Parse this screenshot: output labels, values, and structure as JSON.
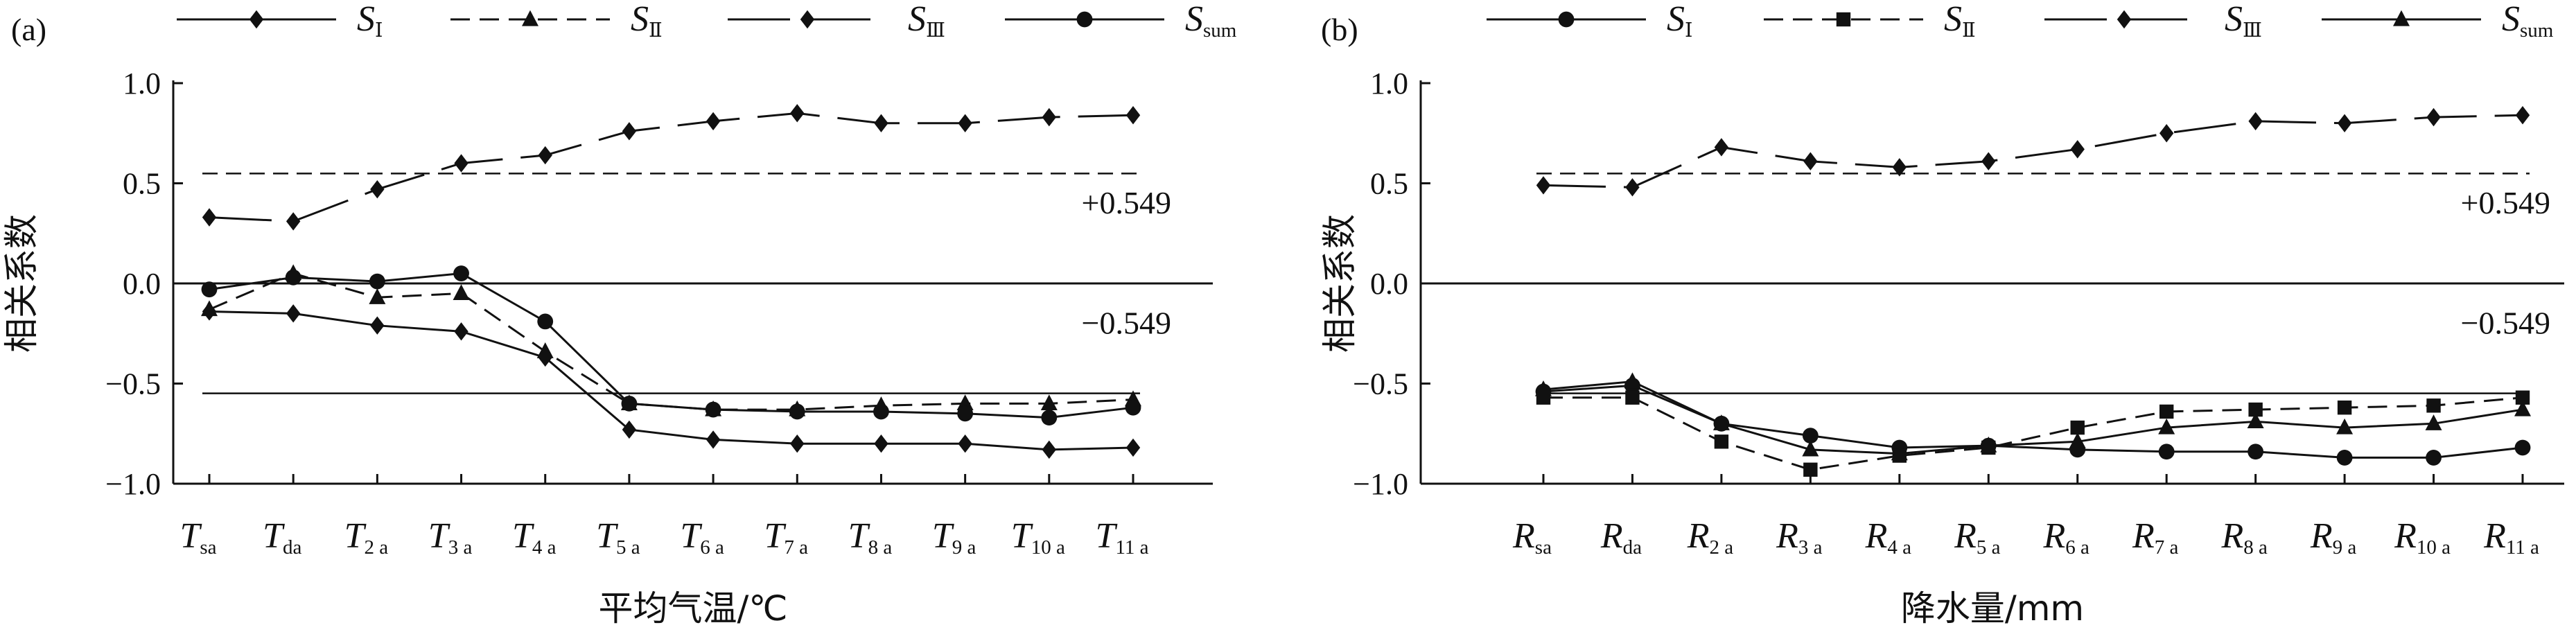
{
  "chart_data": [
    {
      "panel_label": "(a)",
      "type": "line",
      "xlabel": "平均气温/℃",
      "ylabel": "相关系数",
      "ylim": [
        -1.0,
        1.0
      ],
      "yticks": [
        "1.0",
        "0.5",
        "0.0",
        "−0.5",
        "−1.0"
      ],
      "categories": [
        {
          "base": "T",
          "sub": "sa"
        },
        {
          "base": "T",
          "sub": "da"
        },
        {
          "base": "T",
          "sub": "2 a"
        },
        {
          "base": "T",
          "sub": "3 a"
        },
        {
          "base": "T",
          "sub": "4 a"
        },
        {
          "base": "T",
          "sub": "5 a"
        },
        {
          "base": "T",
          "sub": "6 a"
        },
        {
          "base": "T",
          "sub": "7 a"
        },
        {
          "base": "T",
          "sub": "8 a"
        },
        {
          "base": "T",
          "sub": "9 a"
        },
        {
          "base": "T",
          "sub": "10 a"
        },
        {
          "base": "T",
          "sub": "11 a"
        }
      ],
      "thresholds": [
        {
          "value": 0.549,
          "label": "+0.549",
          "style": "dashed"
        },
        {
          "value": -0.549,
          "label": "−0.549",
          "style": "solid"
        }
      ],
      "zero_line": true,
      "legend_position": "top",
      "series": [
        {
          "name_base": "S",
          "name_sub": "Ⅰ",
          "marker": "diamond",
          "line": "solid",
          "values": [
            -0.14,
            -0.15,
            -0.21,
            -0.24,
            -0.37,
            -0.73,
            -0.78,
            -0.8,
            -0.8,
            -0.8,
            -0.83,
            -0.82
          ]
        },
        {
          "name_base": "S",
          "name_sub": "Ⅱ",
          "marker": "triangle",
          "line": "dashed",
          "values": [
            -0.13,
            0.05,
            -0.07,
            -0.05,
            -0.34,
            -0.6,
            -0.63,
            -0.63,
            -0.61,
            -0.6,
            -0.6,
            -0.58
          ]
        },
        {
          "name_base": "S",
          "name_sub": "Ⅲ",
          "marker": "diamond",
          "line": "longdash",
          "values": [
            0.33,
            0.31,
            0.47,
            0.6,
            0.64,
            0.76,
            0.81,
            0.85,
            0.8,
            0.8,
            0.83,
            0.84
          ]
        },
        {
          "name_base": "S",
          "name_sub": "sum",
          "marker": "circle",
          "line": "solid",
          "values": [
            -0.03,
            0.03,
            0.01,
            0.05,
            -0.19,
            -0.6,
            -0.63,
            -0.64,
            -0.64,
            -0.65,
            -0.67,
            -0.62
          ]
        }
      ]
    },
    {
      "panel_label": "(b)",
      "type": "line",
      "xlabel": "降水量/mm",
      "ylabel": "相关系数",
      "ylim": [
        -1.0,
        1.0
      ],
      "yticks": [
        "1.0",
        "0.5",
        "0.0",
        "−0.5",
        "−1.0"
      ],
      "categories": [
        {
          "base": "R",
          "sub": "sa"
        },
        {
          "base": "R",
          "sub": "da"
        },
        {
          "base": "R",
          "sub": "2 a"
        },
        {
          "base": "R",
          "sub": "3 a"
        },
        {
          "base": "R",
          "sub": "4 a"
        },
        {
          "base": "R",
          "sub": "5 a"
        },
        {
          "base": "R",
          "sub": "6 a"
        },
        {
          "base": "R",
          "sub": "7 a"
        },
        {
          "base": "R",
          "sub": "8 a"
        },
        {
          "base": "R",
          "sub": "9 a"
        },
        {
          "base": "R",
          "sub": "10 a"
        },
        {
          "base": "R",
          "sub": "11 a"
        }
      ],
      "thresholds": [
        {
          "value": 0.549,
          "label": "+0.549",
          "style": "dashed"
        },
        {
          "value": -0.549,
          "label": "−0.549",
          "style": "solid"
        }
      ],
      "zero_line": true,
      "legend_position": "top",
      "series": [
        {
          "name_base": "S",
          "name_sub": "Ⅰ",
          "marker": "circle",
          "line": "solid",
          "values": [
            -0.54,
            -0.51,
            -0.7,
            -0.76,
            -0.82,
            -0.81,
            -0.83,
            -0.84,
            -0.84,
            -0.87,
            -0.87,
            -0.82
          ]
        },
        {
          "name_base": "S",
          "name_sub": "Ⅱ",
          "marker": "square",
          "line": "dashed",
          "values": [
            -0.57,
            -0.57,
            -0.79,
            -0.93,
            -0.86,
            -0.82,
            -0.72,
            -0.64,
            -0.63,
            -0.62,
            -0.61,
            -0.57
          ]
        },
        {
          "name_base": "S",
          "name_sub": "Ⅲ",
          "marker": "diamond",
          "line": "longdash",
          "values": [
            0.49,
            0.48,
            0.68,
            0.61,
            0.58,
            0.61,
            0.67,
            0.75,
            0.81,
            0.8,
            0.83,
            0.84
          ]
        },
        {
          "name_base": "S",
          "name_sub": "sum",
          "marker": "triangle",
          "line": "solid",
          "values": [
            -0.53,
            -0.49,
            -0.7,
            -0.83,
            -0.85,
            -0.81,
            -0.79,
            -0.72,
            -0.69,
            -0.72,
            -0.7,
            -0.63
          ]
        }
      ]
    }
  ]
}
